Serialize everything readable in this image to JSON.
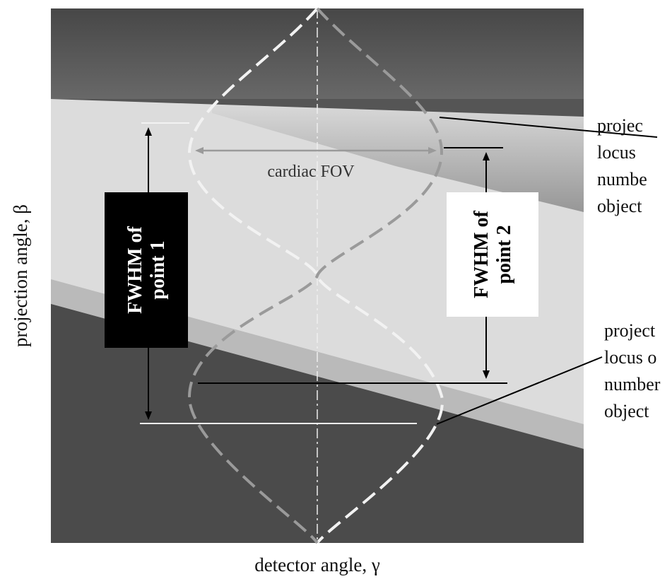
{
  "labels": {
    "x_axis": "detector angle, γ",
    "y_axis": "projection angle, β",
    "fov": "cardiac FOV",
    "fwhm1": [
      "FWHM of",
      "point 1"
    ],
    "fwhm2": [
      "FWHM of",
      "point 2"
    ],
    "callout_top": [
      "projec",
      "locus ",
      "numbe",
      "object"
    ],
    "callout_bottom": [
      "project",
      "locus o",
      "number",
      "object "
    ]
  },
  "colors": {
    "dark_background": "#4b4b4b",
    "light_band": "#dcdcdc",
    "locus_point1": "#f2f2f2",
    "locus_point2": "#9a9a9a",
    "box1_fill": "#000000",
    "box2_fill": "#ffffff"
  }
}
